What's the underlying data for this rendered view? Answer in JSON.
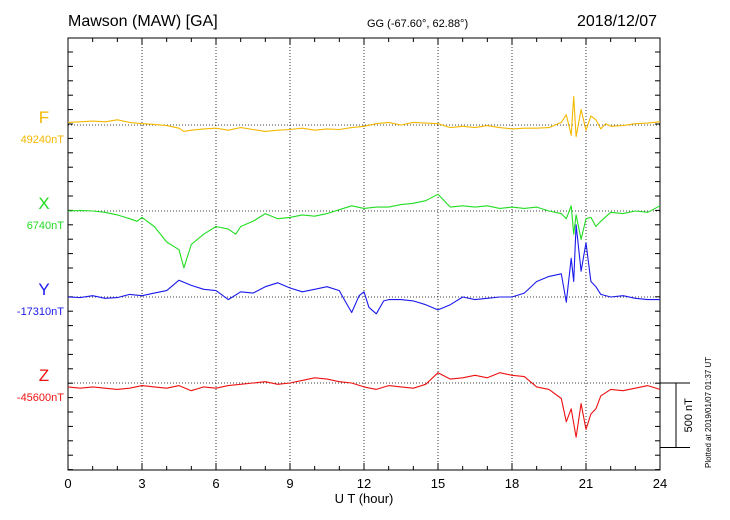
{
  "header": {
    "station": "Mawson (MAW)  [GA]",
    "coords": "GG (-67.60°,  62.88°)",
    "date": "2018/12/07"
  },
  "footer": {
    "credit": "Plotted at 2019/01/07 01:37 UT"
  },
  "chart_data": {
    "type": "line",
    "xlabel": "U T (hour)",
    "xlim": [
      0,
      24
    ],
    "xticks": [
      "0",
      "3",
      "6",
      "9",
      "12",
      "15",
      "18",
      "21",
      "24"
    ],
    "grid": true,
    "scale_bar": {
      "label": "500 nT",
      "value_nT": 500
    },
    "series": [
      {
        "name": "F",
        "baseline_label": "49240nT",
        "color": "#f5b800",
        "t": [
          0,
          0.5,
          1,
          1.5,
          2,
          2.5,
          3,
          3.5,
          4,
          4.5,
          4.7,
          5,
          5.5,
          6,
          6.5,
          7,
          7.5,
          8,
          8.5,
          9,
          9.5,
          10,
          10.5,
          11,
          11.5,
          12,
          12.5,
          13,
          13.5,
          14,
          14.5,
          15,
          15.5,
          16,
          16.5,
          17,
          17.5,
          18,
          18.5,
          19,
          19.5,
          20,
          20.2,
          20.4,
          20.5,
          20.6,
          20.8,
          21,
          21.2,
          21.4,
          21.6,
          21.8,
          22,
          22.5,
          23,
          23.5,
          24
        ],
        "v": [
          20,
          25,
          30,
          25,
          40,
          20,
          10,
          5,
          -5,
          -25,
          -50,
          -40,
          -30,
          -25,
          -40,
          -20,
          -35,
          -50,
          -40,
          -35,
          -25,
          -40,
          -30,
          -35,
          -20,
          -10,
          10,
          20,
          0,
          20,
          15,
          10,
          -20,
          -10,
          -20,
          -5,
          -20,
          -30,
          -25,
          -25,
          -20,
          20,
          80,
          -80,
          220,
          -90,
          120,
          -40,
          70,
          40,
          -30,
          10,
          -10,
          -5,
          10,
          15,
          25
        ]
      },
      {
        "name": "X",
        "baseline_label": "6740nT",
        "color": "#22dd22",
        "t": [
          0,
          0.5,
          1,
          1.5,
          2,
          2.5,
          2.8,
          3,
          3.5,
          4,
          4.5,
          4.7,
          5,
          5.5,
          6,
          6.5,
          6.8,
          7,
          7.5,
          8,
          8.5,
          9,
          9.5,
          10,
          10.5,
          11,
          11.5,
          12,
          12.5,
          13,
          13.5,
          14,
          14.5,
          15,
          15.5,
          16,
          16.5,
          17,
          17.5,
          18,
          18.5,
          19,
          19.5,
          20,
          20.2,
          20.4,
          20.5,
          20.6,
          20.8,
          21,
          21.2,
          21.4,
          21.6,
          22,
          22.5,
          23,
          23.5,
          24
        ],
        "v": [
          0,
          5,
          0,
          -10,
          -30,
          -60,
          -80,
          -50,
          -120,
          -240,
          -300,
          -440,
          -260,
          -180,
          -120,
          -140,
          -180,
          -120,
          -80,
          -20,
          -60,
          -50,
          -30,
          -40,
          -20,
          10,
          40,
          20,
          30,
          30,
          50,
          60,
          80,
          130,
          30,
          40,
          30,
          40,
          20,
          30,
          20,
          30,
          0,
          -20,
          -60,
          40,
          -180,
          -30,
          -220,
          -60,
          -50,
          -120,
          -80,
          -10,
          -20,
          0,
          -10,
          40
        ]
      },
      {
        "name": "Y",
        "baseline_label": "-17310nT",
        "color": "#1a1aee",
        "t": [
          0,
          0.5,
          1,
          1.5,
          2,
          2.5,
          3,
          3.5,
          4,
          4.5,
          5,
          5.5,
          6,
          6.5,
          7,
          7.5,
          8,
          8.5,
          9,
          9.5,
          10,
          10.5,
          11,
          11.2,
          11.5,
          11.8,
          12,
          12.2,
          12.5,
          12.8,
          13,
          13.5,
          14,
          14.5,
          15,
          15.5,
          16,
          16.5,
          17,
          17.5,
          18,
          18.5,
          19,
          19.5,
          20,
          20.2,
          20.4,
          20.5,
          20.6,
          20.8,
          21,
          21.2,
          21.4,
          21.6,
          22,
          22.5,
          23,
          23.5,
          24
        ],
        "v": [
          0,
          -5,
          10,
          -10,
          -5,
          20,
          10,
          30,
          50,
          130,
          90,
          60,
          50,
          -20,
          40,
          30,
          80,
          110,
          70,
          40,
          60,
          80,
          50,
          -20,
          -120,
          10,
          40,
          -80,
          -130,
          -30,
          -20,
          -20,
          -30,
          -60,
          -100,
          -60,
          0,
          -20,
          -10,
          0,
          0,
          30,
          120,
          160,
          180,
          -40,
          300,
          120,
          560,
          200,
          420,
          120,
          80,
          20,
          0,
          10,
          -10,
          -20,
          -20
        ]
      },
      {
        "name": "Z",
        "baseline_label": "-45600nT",
        "color": "#ee1111",
        "t": [
          0,
          0.5,
          1,
          1.5,
          2,
          2.5,
          3,
          3.5,
          4,
          4.5,
          5,
          5.5,
          6,
          6.5,
          7,
          7.5,
          8,
          8.5,
          9,
          9.5,
          10,
          10.5,
          11,
          11.5,
          12,
          12.5,
          13,
          13.5,
          14,
          14.5,
          15,
          15.5,
          16,
          16.5,
          17,
          17.5,
          18,
          18.5,
          19,
          19.5,
          20,
          20.2,
          20.4,
          20.6,
          20.8,
          21,
          21.2,
          21.4,
          21.6,
          22,
          22.5,
          23,
          23.5,
          24
        ],
        "v": [
          -30,
          -40,
          -30,
          -40,
          -50,
          -40,
          -20,
          -30,
          -40,
          -20,
          -60,
          -30,
          -40,
          -20,
          -10,
          0,
          10,
          -10,
          0,
          20,
          40,
          30,
          10,
          0,
          -30,
          -50,
          -20,
          -30,
          -40,
          -10,
          80,
          30,
          40,
          60,
          40,
          80,
          60,
          50,
          -30,
          -50,
          -120,
          -300,
          -200,
          -420,
          -160,
          -360,
          -240,
          -200,
          -100,
          -50,
          -60,
          -40,
          -20,
          -50
        ]
      }
    ]
  }
}
